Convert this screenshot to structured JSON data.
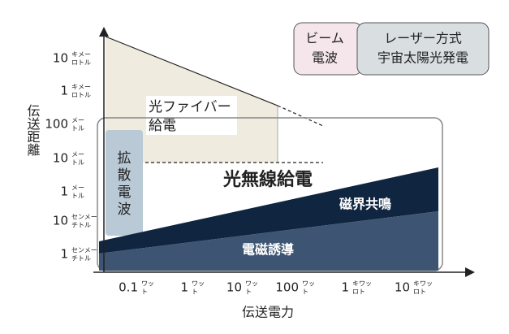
{
  "y_axis": {
    "title": "伝送距離",
    "ticks": [
      {
        "value": "10",
        "unit_top": "キメー",
        "unit_bottom": "ロトル"
      },
      {
        "value": "1",
        "unit_top": "キメー",
        "unit_bottom": "ロトル"
      },
      {
        "value": "100",
        "unit_top": "メー",
        "unit_bottom": "トル"
      },
      {
        "value": "10",
        "unit_top": "メー",
        "unit_bottom": "トル"
      },
      {
        "value": "1",
        "unit_top": "メー",
        "unit_bottom": "トル"
      },
      {
        "value": "10",
        "unit_top": "センメー",
        "unit_bottom": "チトル"
      },
      {
        "value": "1",
        "unit_top": "センメー",
        "unit_bottom": "チトル"
      }
    ]
  },
  "x_axis": {
    "title": "伝送電力",
    "ticks": [
      {
        "value": "0.1",
        "unit_top": "ワッ",
        "unit_bottom": "ト"
      },
      {
        "value": "1",
        "unit_top": "ワッ",
        "unit_bottom": "ト"
      },
      {
        "value": "10",
        "unit_top": "ワッ",
        "unit_bottom": "ト"
      },
      {
        "value": "100",
        "unit_top": "ワッ",
        "unit_bottom": "ト"
      },
      {
        "value": "1",
        "unit_top": "キワッ",
        "unit_bottom": "ロト"
      },
      {
        "value": "10",
        "unit_top": "キワッ",
        "unit_bottom": "ロト"
      }
    ]
  },
  "regions": {
    "fiber": [
      "光ファイバー",
      "給電"
    ],
    "wireless_light": "光無線給電",
    "radio": [
      "拡",
      "散",
      "電",
      "波"
    ],
    "resonance": "磁界共鳴",
    "induction": "電磁誘導"
  },
  "legend": {
    "beam": [
      "ビーム",
      "電波"
    ],
    "laser": [
      "レーザー方式",
      "宇宙太陽光発電"
    ]
  }
}
